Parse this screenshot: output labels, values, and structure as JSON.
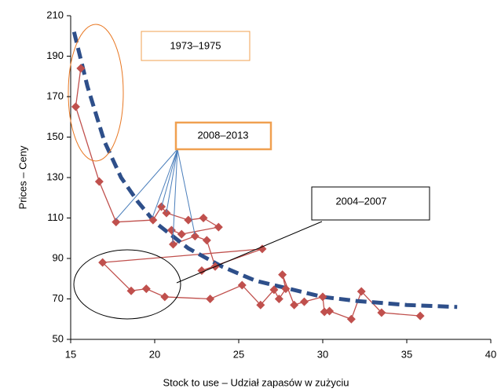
{
  "chart_data": {
    "type": "scatter",
    "x": [
      15.6,
      15.3,
      16.7,
      17.7,
      19.9,
      20.4,
      20.7,
      22.0,
      22.9,
      23.8,
      21.6,
      21.0,
      21.1,
      22.4,
      23.1,
      23.6,
      22.8,
      26.4,
      16.9,
      18.6,
      19.5,
      20.6,
      23.3,
      25.2,
      26.3,
      27.1,
      27.4,
      27.8,
      27.6,
      28.3,
      28.9,
      30.0,
      30.1,
      30.4,
      31.7,
      32.3,
      33.5,
      35.8
    ],
    "values": [
      184,
      165,
      128,
      108,
      109,
      115.6,
      112.5,
      109,
      110,
      105.5,
      102,
      104,
      97,
      101,
      99,
      86,
      84,
      94.7,
      88,
      74,
      75,
      71,
      70,
      76.8,
      67,
      74.5,
      70,
      75,
      82,
      67,
      68.6,
      71,
      63.6,
      64,
      60,
      73.7,
      63.2,
      61.6
    ],
    "color": "#c0504d",
    "trend": {
      "color": "#2e4f8a",
      "x": [
        15.2,
        16,
        17,
        18,
        19,
        20,
        22,
        24,
        26,
        28,
        30,
        32,
        35,
        38
      ],
      "values": [
        202,
        175,
        148,
        130,
        118,
        108,
        95,
        86,
        79,
        75,
        71,
        69,
        67,
        66
      ]
    },
    "xlabel": "Stock to use – Udział zapasów w zużyciu",
    "ylabel": "Prices – Ceny",
    "xlim": [
      15,
      40
    ],
    "xticks": [
      15,
      20,
      25,
      30,
      35,
      40
    ],
    "ylim": [
      50,
      210
    ],
    "yticks": [
      50,
      70,
      90,
      110,
      130,
      150,
      170,
      190,
      210
    ],
    "annotations": [
      "1973–1975",
      "2008–2013",
      "2004–2007"
    ]
  }
}
